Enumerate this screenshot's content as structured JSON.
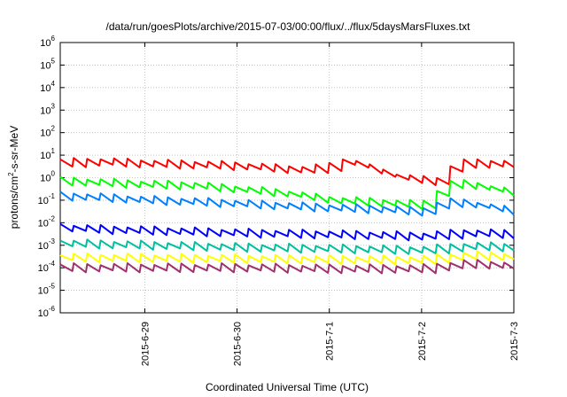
{
  "chart_data": {
    "type": "line",
    "title": "/data/run/goesPlots/archive/2015-07-03/00:00/flux/../flux/5daysMarsFluxes.txt",
    "xlabel": "Coordinated Universal Time (UTC)",
    "ylabel": {
      "base": "protons/cm",
      "sup": "2",
      "rest": "-s-sr-MeV"
    },
    "y_scale": "log",
    "ylim": [
      1e-06,
      1000000.0
    ],
    "y_ticks": [
      {
        "value": 1e-06,
        "base": "10",
        "exp": "-6"
      },
      {
        "value": 1e-05,
        "base": "10",
        "exp": "-5"
      },
      {
        "value": 0.0001,
        "base": "10",
        "exp": "-4"
      },
      {
        "value": 0.001,
        "base": "10",
        "exp": "-3"
      },
      {
        "value": 0.01,
        "base": "10",
        "exp": "-2"
      },
      {
        "value": 0.1,
        "base": "10",
        "exp": "-1"
      },
      {
        "value": 1,
        "base": "10",
        "exp": "0"
      },
      {
        "value": 10,
        "base": "10",
        "exp": "1"
      },
      {
        "value": 100,
        "base": "10",
        "exp": "2"
      },
      {
        "value": 1000,
        "base": "10",
        "exp": "3"
      },
      {
        "value": 10000,
        "base": "10",
        "exp": "4"
      },
      {
        "value": 100000,
        "base": "10",
        "exp": "5"
      },
      {
        "value": 1000000,
        "base": "10",
        "exp": "6"
      }
    ],
    "xlim": [
      "2015-06-28T02:00",
      "2015-07-03T00:00"
    ],
    "x_ticks": [
      {
        "value": "2015-06-29T00:00",
        "label": "2015-6-29"
      },
      {
        "value": "2015-06-30T00:00",
        "label": "2015-6-30"
      },
      {
        "value": "2015-07-01T00:00",
        "label": "2015-7-1"
      },
      {
        "value": "2015-07-02T00:00",
        "label": "2015-7-2"
      },
      {
        "value": "2015-07-03T00:00",
        "label": "2015-7-3"
      }
    ],
    "grid": true,
    "series": [
      {
        "color": "#ff0000",
        "points": [
          [
            "2015-06-28T02:00",
            4.5
          ],
          [
            "2015-06-28T12:00",
            5.0
          ],
          [
            "2015-06-29T00:00",
            4.2
          ],
          [
            "2015-06-29T12:00",
            3.8
          ],
          [
            "2015-06-30T00:00",
            3.3
          ],
          [
            "2015-06-30T12:00",
            2.4
          ],
          [
            "2015-06-30T18:00",
            2.2
          ],
          [
            "2015-07-01T00:00",
            3.0
          ],
          [
            "2015-07-01T03:00",
            5.0
          ],
          [
            "2015-07-01T06:00",
            4.5
          ],
          [
            "2015-07-01T12:00",
            2.0
          ],
          [
            "2015-07-01T18:00",
            1.0
          ],
          [
            "2015-07-02T00:00",
            0.75
          ],
          [
            "2015-07-02T04:00",
            0.7
          ],
          [
            "2015-07-02T06:00",
            1.5
          ],
          [
            "2015-07-02T09:00",
            4.0
          ],
          [
            "2015-07-02T12:00",
            4.3
          ],
          [
            "2015-07-03T00:00",
            4.0
          ]
        ]
      },
      {
        "color": "#00ff00",
        "points": [
          [
            "2015-06-28T02:00",
            0.7
          ],
          [
            "2015-06-28T12:00",
            0.6
          ],
          [
            "2015-06-29T00:00",
            0.5
          ],
          [
            "2015-06-29T12:00",
            0.45
          ],
          [
            "2015-06-30T00:00",
            0.3
          ],
          [
            "2015-06-30T12:00",
            0.2
          ],
          [
            "2015-07-01T00:00",
            0.1
          ],
          [
            "2015-07-01T12:00",
            0.08
          ],
          [
            "2015-07-02T00:00",
            0.06
          ],
          [
            "2015-07-02T02:00",
            0.08
          ],
          [
            "2015-07-02T06:00",
            0.5
          ],
          [
            "2015-07-02T12:00",
            0.5
          ],
          [
            "2015-07-03T00:00",
            0.2
          ]
        ]
      },
      {
        "color": "#0080ff",
        "points": [
          [
            "2015-06-28T02:00",
            0.15
          ],
          [
            "2015-06-28T12:00",
            0.13
          ],
          [
            "2015-06-29T00:00",
            0.1
          ],
          [
            "2015-06-29T12:00",
            0.085
          ],
          [
            "2015-06-30T00:00",
            0.07
          ],
          [
            "2015-06-30T12:00",
            0.055
          ],
          [
            "2015-07-01T00:00",
            0.045
          ],
          [
            "2015-07-01T12:00",
            0.04
          ],
          [
            "2015-07-02T00:00",
            0.03
          ],
          [
            "2015-07-02T06:00",
            0.08
          ],
          [
            "2015-07-02T12:00",
            0.07
          ],
          [
            "2015-07-03T00:00",
            0.03
          ]
        ]
      },
      {
        "color": "#0000ff",
        "points": [
          [
            "2015-06-28T02:00",
            0.006
          ],
          [
            "2015-06-28T12:00",
            0.005
          ],
          [
            "2015-06-29T00:00",
            0.0045
          ],
          [
            "2015-06-30T00:00",
            0.0035
          ],
          [
            "2015-07-01T00:00",
            0.003
          ],
          [
            "2015-07-02T00:00",
            0.0025
          ],
          [
            "2015-07-02T12:00",
            0.0035
          ],
          [
            "2015-07-03T00:00",
            0.003
          ]
        ]
      },
      {
        "color": "#00c0a0",
        "points": [
          [
            "2015-06-28T02:00",
            0.0012
          ],
          [
            "2015-06-28T12:00",
            0.0011
          ],
          [
            "2015-06-29T00:00",
            0.001
          ],
          [
            "2015-06-30T00:00",
            0.0008
          ],
          [
            "2015-07-01T00:00",
            0.0007
          ],
          [
            "2015-07-02T00:00",
            0.0006
          ],
          [
            "2015-07-02T12:00",
            0.0009
          ],
          [
            "2015-07-03T00:00",
            0.0008
          ]
        ]
      },
      {
        "color": "#ffff00",
        "points": [
          [
            "2015-06-28T02:00",
            0.00028
          ],
          [
            "2015-06-29T00:00",
            0.00027
          ],
          [
            "2015-06-30T00:00",
            0.00025
          ],
          [
            "2015-07-01T00:00",
            0.00023
          ],
          [
            "2015-07-02T00:00",
            0.00022
          ],
          [
            "2015-07-02T12:00",
            0.00035
          ],
          [
            "2015-07-03T00:00",
            0.0003
          ]
        ]
      },
      {
        "color": "#a0306a",
        "points": [
          [
            "2015-06-28T02:00",
            0.0001
          ],
          [
            "2015-06-29T00:00",
            0.0001
          ],
          [
            "2015-06-30T00:00",
            0.0001
          ],
          [
            "2015-07-01T00:00",
            9e-05
          ],
          [
            "2015-07-02T00:00",
            9e-05
          ],
          [
            "2015-07-02T12:00",
            0.00015
          ],
          [
            "2015-07-03T00:00",
            0.00012
          ]
        ]
      }
    ]
  }
}
